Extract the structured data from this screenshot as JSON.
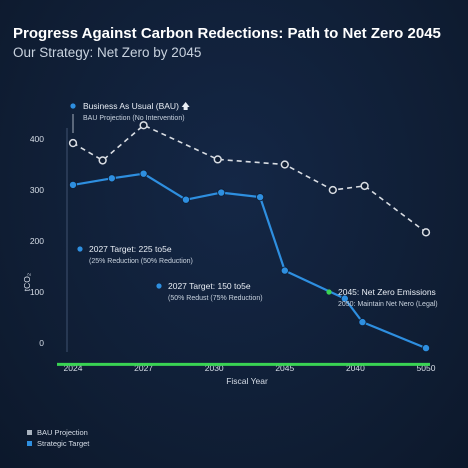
{
  "title": "Progress Against Carbon Redections: Path to Net Zero 2045",
  "subtitle": "Our Strategy: Net Zero by 2045",
  "chart_data": {
    "type": "line",
    "xlabel": "Fiscal Year",
    "ylabel": "tCO₂",
    "ylim": [
      0,
      420
    ],
    "yticks": [
      0,
      100,
      200,
      300,
      400
    ],
    "x_tick_labels": [
      "2024",
      "2027",
      "2030",
      "2045",
      "2040",
      "5050"
    ],
    "grid": false,
    "series": [
      {
        "name": "BAU Projection",
        "color": "#d9dde3",
        "style": "dashed",
        "x": [
          0,
          0.42,
          1,
          2.05,
          3,
          3.68,
          4.13,
          5
        ],
        "values": [
          392,
          358,
          427,
          360,
          350,
          300,
          308,
          217
        ]
      },
      {
        "name": "Strategic Target",
        "color": "#2e8fe0",
        "style": "solid",
        "x": [
          0,
          0.55,
          1,
          1.6,
          2.1,
          2.65,
          3,
          3.85,
          4.1,
          5
        ],
        "values": [
          310,
          323,
          332,
          281,
          295,
          286,
          142,
          87,
          41,
          -10
        ]
      }
    ],
    "net_zero_line": {
      "value": -42,
      "color": "#39d353"
    },
    "annotations": [
      {
        "id": "bau",
        "title": "Business As Usual (BAU) 🡅",
        "sub": "BAU Projection (No Intervention)",
        "color": "#2e8fe0"
      },
      {
        "id": "t2027a",
        "title": "2027 Target: 225 to5e",
        "sub": "(25% Reduction (50% Reduction)",
        "color": "#2e8fe0"
      },
      {
        "id": "t2027b",
        "title": "2027 Target: 150 to5e",
        "sub": "(50% Redust (75% Reduction)",
        "color": "#2e8fe0"
      },
      {
        "id": "nz2045",
        "title": "2045: Net Zero Emissions",
        "sub": "2050: Maintain Net Nero (Legal)",
        "color": "#39d353"
      }
    ],
    "legend": {
      "position": "bottom-left",
      "items": [
        {
          "label": "BAU Projection",
          "color": "#a9b3bf"
        },
        {
          "label": "Strategic Target",
          "color": "#2e8fe0"
        }
      ]
    }
  }
}
